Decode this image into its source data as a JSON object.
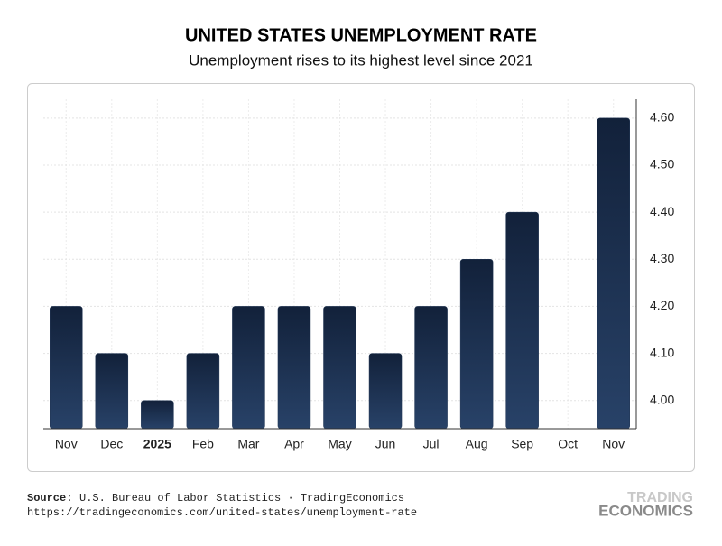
{
  "chart_data": {
    "type": "bar",
    "title": "UNITED STATES UNEMPLOYMENT RATE",
    "subtitle": "Unemployment rises to its highest level since 2021",
    "categories": [
      "Nov",
      "Dec",
      "2025",
      "Feb",
      "Mar",
      "Apr",
      "May",
      "Jun",
      "Jul",
      "Aug",
      "Sep",
      "Oct",
      "Nov"
    ],
    "values": [
      4.2,
      4.1,
      4.0,
      4.1,
      4.2,
      4.2,
      4.2,
      4.1,
      4.2,
      4.3,
      4.4,
      null,
      4.6
    ],
    "color": "#1e3352",
    "ylim": [
      3.94,
      4.64
    ],
    "yticks": [
      {
        "value": 4.0,
        "label": "4.00"
      },
      {
        "value": 4.1,
        "label": "4.10"
      },
      {
        "value": 4.2,
        "label": "4.20"
      },
      {
        "value": 4.3,
        "label": "4.30"
      },
      {
        "value": 4.4,
        "label": "4.40"
      },
      {
        "value": 4.5,
        "label": "4.50"
      },
      {
        "value": 4.6,
        "label": "4.60"
      }
    ],
    "grid": true
  },
  "footer": {
    "source_label": "Source:",
    "source": "U.S. Bureau of Labor Statistics · TradingEconomics",
    "url": "https://tradingeconomics.com/united-states/unemployment-rate",
    "logo_top": "TRADING",
    "logo_bottom": "ECONOMICS"
  }
}
